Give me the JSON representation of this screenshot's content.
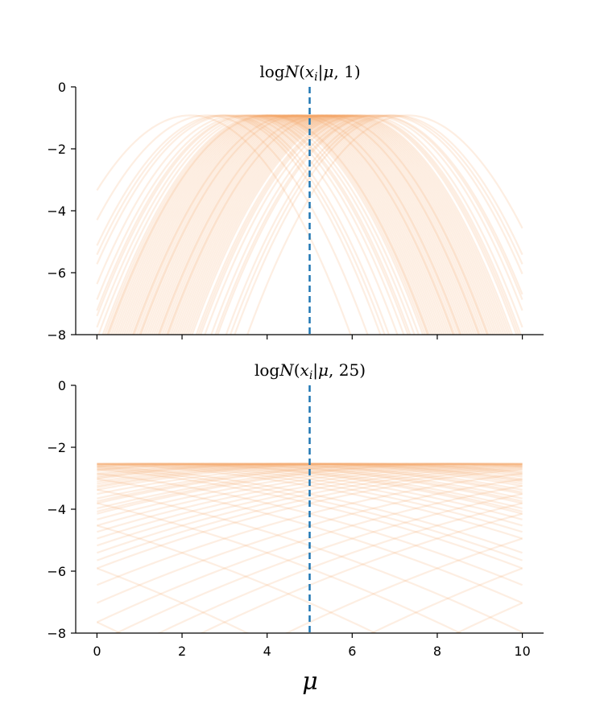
{
  "chart_data": [
    {
      "type": "line",
      "title": "logN(x_i|μ, 1)",
      "title_parts": {
        "log": "log",
        "N": "N",
        "open": "(",
        "x": "x",
        "sub": "i",
        "bar": "|",
        "mu": "μ",
        "rest": ", 1)"
      },
      "xlabel": "",
      "ylabel": "",
      "xlim": [
        -0.5,
        10.5
      ],
      "ylim": [
        -8,
        0
      ],
      "yticks": [
        0,
        -2,
        -4,
        -6,
        -8
      ],
      "ytick_labels": [
        "0",
        "−2",
        "−4",
        "−6",
        "−8"
      ],
      "xticks": [
        0,
        2,
        4,
        6,
        8,
        10
      ],
      "show_xtick_labels": false,
      "variance": 1,
      "line_color": "#f4a261",
      "line_opacity": 0.18,
      "mu_marker": 5,
      "marker_color": "#1f77b4",
      "grid": false,
      "x_i": [
        2.2,
        2.6,
        2.9,
        3.1,
        3.3,
        3.45,
        3.6,
        3.7,
        3.8,
        3.9,
        4.0,
        4.05,
        4.1,
        4.2,
        4.25,
        4.3,
        4.4,
        4.45,
        4.5,
        4.55,
        4.6,
        4.65,
        4.7,
        4.75,
        4.8,
        4.85,
        4.9,
        4.95,
        5.0,
        5.05,
        5.1,
        5.15,
        5.2,
        5.25,
        5.3,
        5.35,
        5.4,
        5.45,
        5.5,
        5.55,
        5.6,
        5.7,
        5.75,
        5.8,
        5.9,
        6.0,
        6.1,
        6.2,
        6.3,
        6.45,
        6.6,
        6.8,
        7.0,
        7.3,
        3.55,
        4.15,
        4.35,
        5.65,
        5.85,
        6.55,
        3.0,
        3.95,
        4.62,
        5.42,
        6.15,
        6.9,
        4.02,
        4.78,
        5.22,
        5.95
      ]
    },
    {
      "type": "line",
      "title": "logN(x_i|μ, 25)",
      "title_parts": {
        "log": "log",
        "N": "N",
        "open": "(",
        "x": "x",
        "sub": "i",
        "bar": "|",
        "mu": "μ",
        "rest": ", 25)"
      },
      "xlabel": "μ",
      "ylabel": "",
      "xlim": [
        -0.5,
        10.5
      ],
      "ylim": [
        -8,
        0
      ],
      "yticks": [
        0,
        -2,
        -4,
        -6,
        -8
      ],
      "ytick_labels": [
        "0",
        "−2",
        "−4",
        "−6",
        "−8"
      ],
      "xticks": [
        0,
        2,
        4,
        6,
        8,
        10
      ],
      "xtick_labels": [
        "0",
        "2",
        "4",
        "6",
        "8",
        "10"
      ],
      "show_xtick_labels": true,
      "variance": 25,
      "line_color": "#f4a261",
      "line_opacity": 0.18,
      "mu_marker": 5,
      "marker_color": "#1f77b4",
      "grid": false,
      "x_i": [
        -20.0,
        -16.0,
        -13.0,
        -10.0,
        -8.0,
        -6.5,
        -5.0,
        -4.0,
        -3.0,
        -2.0,
        -1.0,
        -0.5,
        0.0,
        0.5,
        1.0,
        1.5,
        2.0,
        2.5,
        3.0,
        3.5,
        4.0,
        4.3,
        4.6,
        5.0,
        5.4,
        5.7,
        6.0,
        6.5,
        7.0,
        7.5,
        8.0,
        8.5,
        9.0,
        9.5,
        10.0,
        10.5,
        11.0,
        12.0,
        13.0,
        14.0,
        15.0,
        16.0,
        17.0,
        18.0,
        19.0,
        21.0,
        23.0,
        25.0,
        27.0,
        30.0,
        2.2,
        3.2,
        4.8,
        6.2,
        7.8,
        1.2,
        8.8,
        11.5,
        -2.5,
        12.5
      ]
    }
  ]
}
